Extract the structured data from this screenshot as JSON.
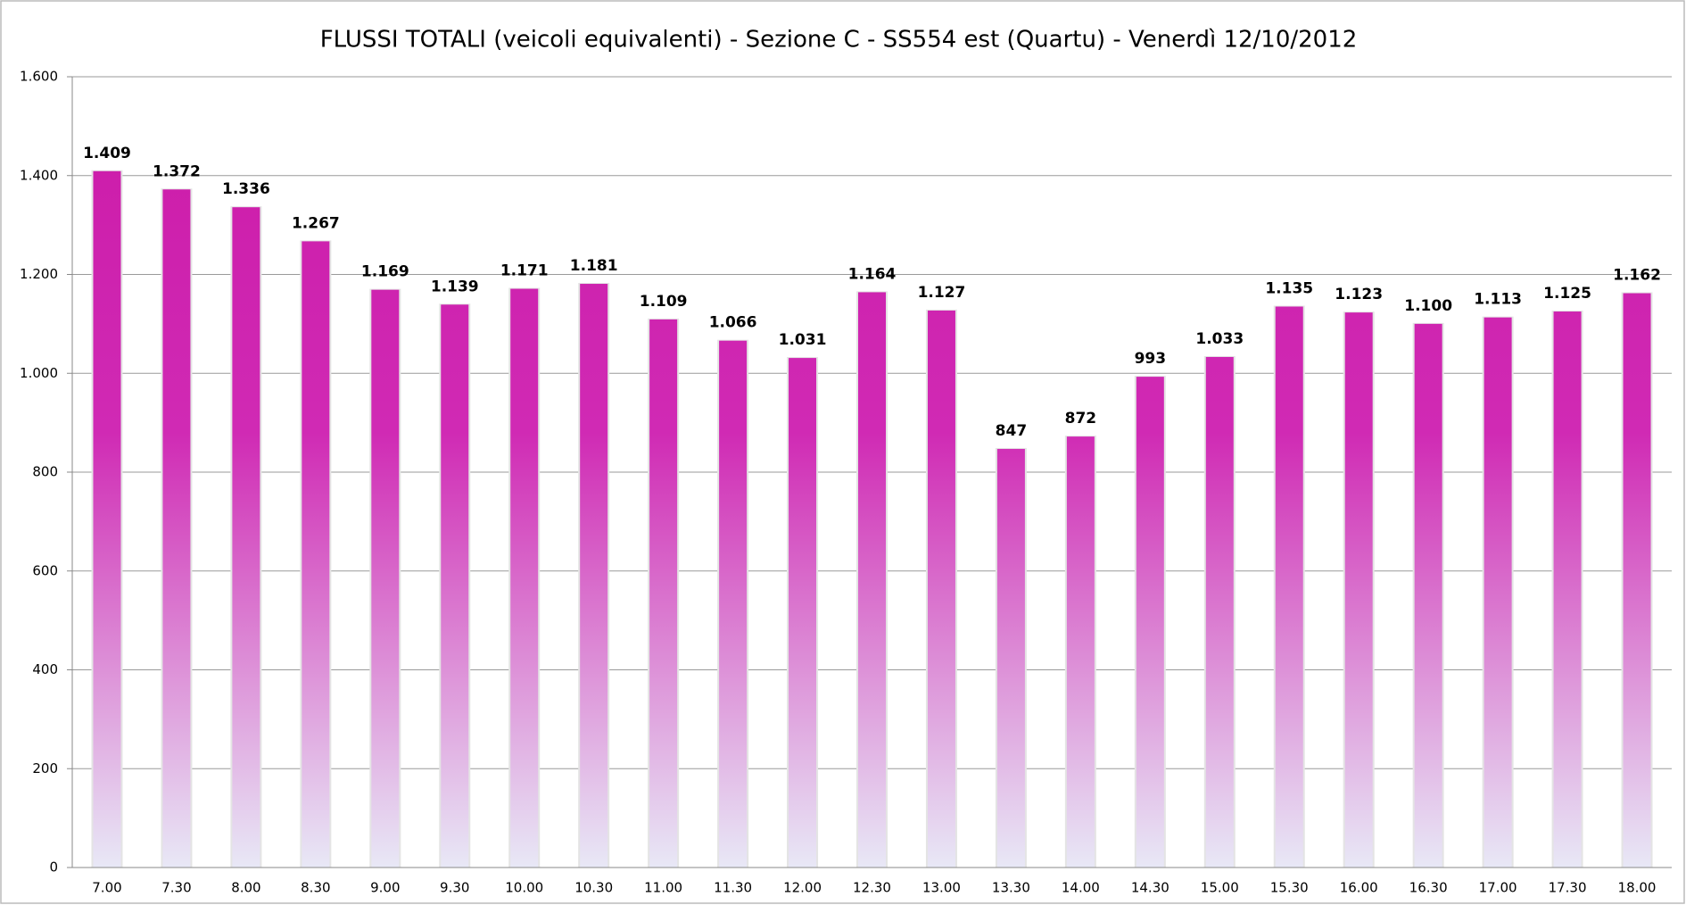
{
  "chart_data": {
    "type": "bar",
    "title": "FLUSSI TOTALI (veicoli equivalenti)  - Sezione C - SS554 est (Quartu) - Venerdì 12/10/2012",
    "categories": [
      "7.00",
      "7.30",
      "8.00",
      "8.30",
      "9.00",
      "9.30",
      "10.00",
      "10.30",
      "11.00",
      "11.30",
      "12.00",
      "12.30",
      "13.00",
      "13.30",
      "14.00",
      "14.30",
      "15.00",
      "15.30",
      "16.00",
      "16.30",
      "17.00",
      "17.30",
      "18.00"
    ],
    "values": [
      1409,
      1372,
      1336,
      1267,
      1169,
      1139,
      1171,
      1181,
      1109,
      1066,
      1031,
      1164,
      1127,
      847,
      872,
      993,
      1033,
      1135,
      1123,
      1100,
      1113,
      1125,
      1162
    ],
    "value_labels": [
      "1.409",
      "1.372",
      "1.336",
      "1.267",
      "1.169",
      "1.139",
      "1.171",
      "1.181",
      "1.109",
      "1.066",
      "1.031",
      "1.164",
      "1.127",
      "847",
      "872",
      "993",
      "1.033",
      "1.135",
      "1.123",
      "1.100",
      "1.113",
      "1.125",
      "1.162"
    ],
    "color": "#cc1aa8",
    "ylim": [
      0,
      1600
    ],
    "yticks": [
      0,
      200,
      400,
      600,
      800,
      {
        "value": 1000,
        "label": "1.000"
      },
      {
        "value": 1200,
        "label": "1.200"
      },
      {
        "value": 1400,
        "label": "1.400"
      },
      {
        "value": 1600,
        "label": "1.600"
      }
    ],
    "grid": true
  }
}
